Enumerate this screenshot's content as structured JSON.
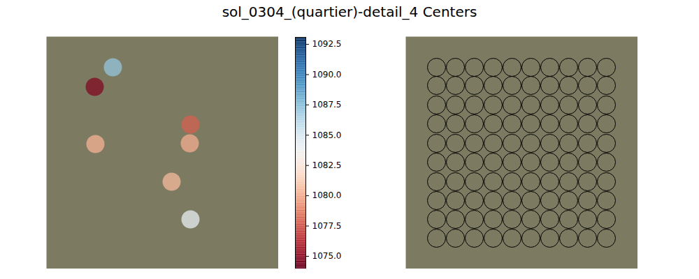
{
  "chart_data": {
    "title": "sol_0304_(quartier)-detail_4 Centers",
    "panels": [
      {
        "type": "scatter",
        "x": [
          95,
          69,
          206,
          70,
          205,
          179,
          206
        ],
        "y": [
          44,
          72,
          126,
          154,
          153,
          208,
          262
        ],
        "values": [
          1087.2,
          1074.6,
          1077.8,
          1080.2,
          1080.0,
          1080.4,
          1084.2
        ],
        "xlim": [
          0,
          332
        ],
        "ylim": [
          0,
          333
        ],
        "tick_labels": false,
        "colorbar": {
          "range": [
            1073.96,
            1093.08
          ],
          "ticks": [
            {
              "value": 1075,
              "label": "1075.0"
            },
            1077.5,
            {
              "value": 1080,
              "label": "1080.0"
            },
            1082.5,
            {
              "value": 1085,
              "label": "1085.0"
            },
            1087.5,
            {
              "value": 1090,
              "label": "1090.0"
            },
            1092.5
          ]
        }
      },
      {
        "type": "scatter",
        "grid_x": [
          44,
          71,
          98,
          125,
          152,
          179,
          206,
          233,
          260,
          287
        ],
        "grid_y": [
          44,
          70,
          98,
          125,
          153,
          180,
          208,
          235,
          262,
          289
        ],
        "xlim": [
          0,
          332
        ],
        "ylim": [
          0,
          333
        ],
        "marker": "circle",
        "color": "black",
        "tick_labels": false
      }
    ]
  }
}
